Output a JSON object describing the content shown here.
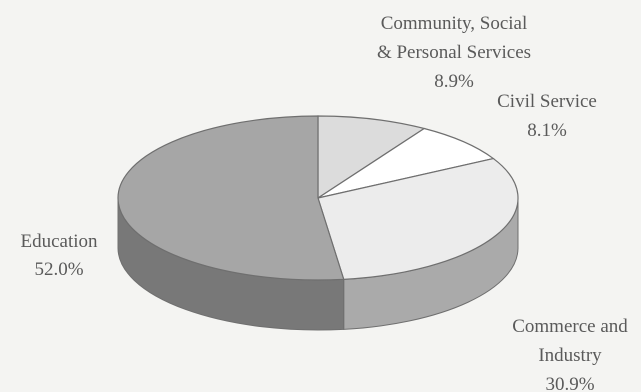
{
  "chart_data": {
    "type": "pie",
    "style": "3d",
    "start_angle_deg": 90,
    "direction": "clockwise",
    "series": [
      {
        "key": "community",
        "label_lines": [
          "Community, Social",
          "& Personal Services"
        ],
        "pct_label": "8.9%",
        "value": 8.9,
        "color": "#dcdcdc"
      },
      {
        "key": "civil",
        "label_lines": [
          "Civil Service"
        ],
        "pct_label": "8.1%",
        "value": 8.1,
        "color": "#ffffff"
      },
      {
        "key": "commerce",
        "label_lines": [
          "Commerce and",
          "Industry"
        ],
        "pct_label": "30.9%",
        "value": 30.9,
        "color": "#ececec"
      },
      {
        "key": "education",
        "label_lines": [
          "Education"
        ],
        "pct_label": "52.0%",
        "value": 52.0,
        "color": "#a6a6a6"
      }
    ]
  }
}
